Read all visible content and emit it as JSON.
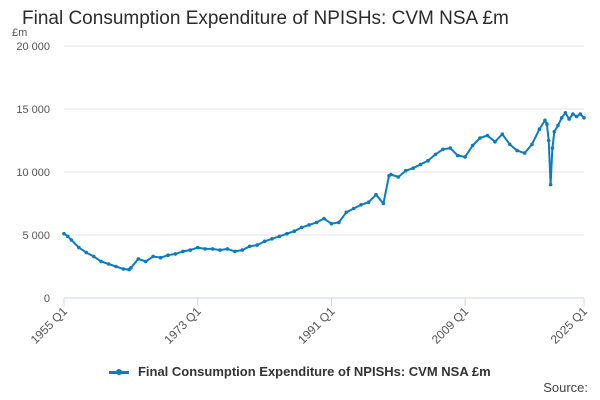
{
  "chart_data": {
    "type": "line",
    "title": "Final Consumption Expenditure of NPISHs: CVM NSA £m",
    "ylabel": "£m",
    "xlabel": "",
    "ylim": [
      0,
      20000
    ],
    "yticks": [
      0,
      5000,
      10000,
      15000,
      20000
    ],
    "ytick_labels": [
      "0",
      "5 000",
      "10 000",
      "15 000",
      "20 000"
    ],
    "xlim": [
      1955,
      2025
    ],
    "xticks": [
      1955,
      1973,
      1991,
      2009,
      2025
    ],
    "xtick_labels": [
      "1955 Q1",
      "1973 Q1",
      "1991 Q1",
      "2009 Q1",
      "2025 Q1"
    ],
    "grid": true,
    "legend_position": "bottom",
    "source_label": "Source:",
    "series": [
      {
        "name": "Final Consumption Expenditure of NPISHs: CVM NSA £m",
        "color": "#0a7dc2",
        "x": [
          1955,
          1955.5,
          1956,
          1957,
          1958,
          1959,
          1960,
          1961,
          1962,
          1963,
          1963.75,
          1964,
          1965,
          1966,
          1967,
          1968,
          1969,
          1970,
          1971,
          1972,
          1973,
          1974,
          1975,
          1976,
          1977,
          1978,
          1979,
          1980,
          1981,
          1982,
          1983,
          1984,
          1985,
          1986,
          1987,
          1988,
          1989,
          1990,
          1991,
          1992,
          1993,
          1994,
          1995,
          1996,
          1997,
          1998,
          1998.75,
          1999,
          2000,
          2001,
          2002,
          2003,
          2004,
          2005,
          2006,
          2007,
          2008,
          2009,
          2010,
          2011,
          2012,
          2013,
          2014,
          2015,
          2016,
          2017,
          2018,
          2019,
          2019.75,
          2020,
          2020.25,
          2020.5,
          2020.75,
          2021,
          2021.5,
          2022,
          2022.5,
          2023,
          2023.5,
          2024,
          2024.5,
          2025
        ],
        "values": [
          5100,
          4900,
          4600,
          4000,
          3600,
          3300,
          2900,
          2700,
          2500,
          2300,
          2250,
          2400,
          3100,
          2900,
          3300,
          3200,
          3400,
          3500,
          3700,
          3800,
          4000,
          3900,
          3900,
          3800,
          3900,
          3700,
          3800,
          4100,
          4200,
          4500,
          4700,
          4900,
          5100,
          5300,
          5600,
          5800,
          6000,
          6300,
          5900,
          6000,
          6800,
          7100,
          7400,
          7600,
          8200,
          7500,
          9700,
          9800,
          9600,
          10100,
          10300,
          10600,
          10900,
          11400,
          11800,
          11900,
          11300,
          11200,
          12100,
          12700,
          12900,
          12400,
          13000,
          12200,
          11700,
          11500,
          12200,
          13400,
          14100,
          13800,
          12500,
          9000,
          11900,
          13200,
          13700,
          14300,
          14700,
          14200,
          14600,
          14400,
          14600,
          14300
        ]
      }
    ]
  }
}
